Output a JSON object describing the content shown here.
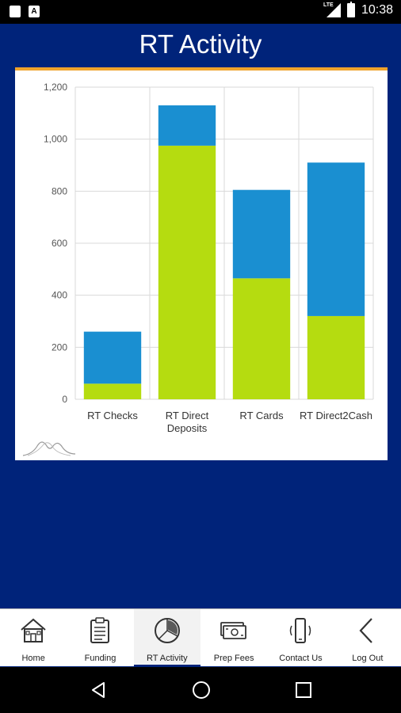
{
  "status": {
    "time": "10:38",
    "network": "LTE"
  },
  "header": {
    "title": "RT Activity"
  },
  "chart_data": {
    "type": "bar",
    "stacked": true,
    "categories": [
      "RT Checks",
      "RT Direct Deposits",
      "RT Cards",
      "RT Direct2Cash"
    ],
    "category_lines": [
      [
        "RT Checks"
      ],
      [
        "RT Direct",
        "Deposits"
      ],
      [
        "RT Cards"
      ],
      [
        "RT Direct2Cash"
      ]
    ],
    "series": [
      {
        "color": "#b5dc10",
        "values": [
          60,
          975,
          465,
          320
        ]
      },
      {
        "color": "#1a8fd1",
        "values": [
          200,
          155,
          340,
          590
        ]
      }
    ],
    "ylim": [
      0,
      1200
    ],
    "yticks": [
      "0",
      "200",
      "400",
      "600",
      "800",
      "1,000",
      "1,200"
    ],
    "ytick_values": [
      0,
      200,
      400,
      600,
      800,
      1000,
      1200
    ],
    "grid": true
  },
  "tabs": [
    {
      "label": "Home",
      "icon": "home-icon",
      "active": false
    },
    {
      "label": "Funding",
      "icon": "clipboard-icon",
      "active": false
    },
    {
      "label": "RT Activity",
      "icon": "pie-chart-icon",
      "active": true
    },
    {
      "label": "Prep Fees",
      "icon": "money-icon",
      "active": false
    },
    {
      "label": "Contact Us",
      "icon": "phone-icon",
      "active": false
    },
    {
      "label": "Log Out",
      "icon": "back-arrow-icon",
      "active": false
    }
  ]
}
